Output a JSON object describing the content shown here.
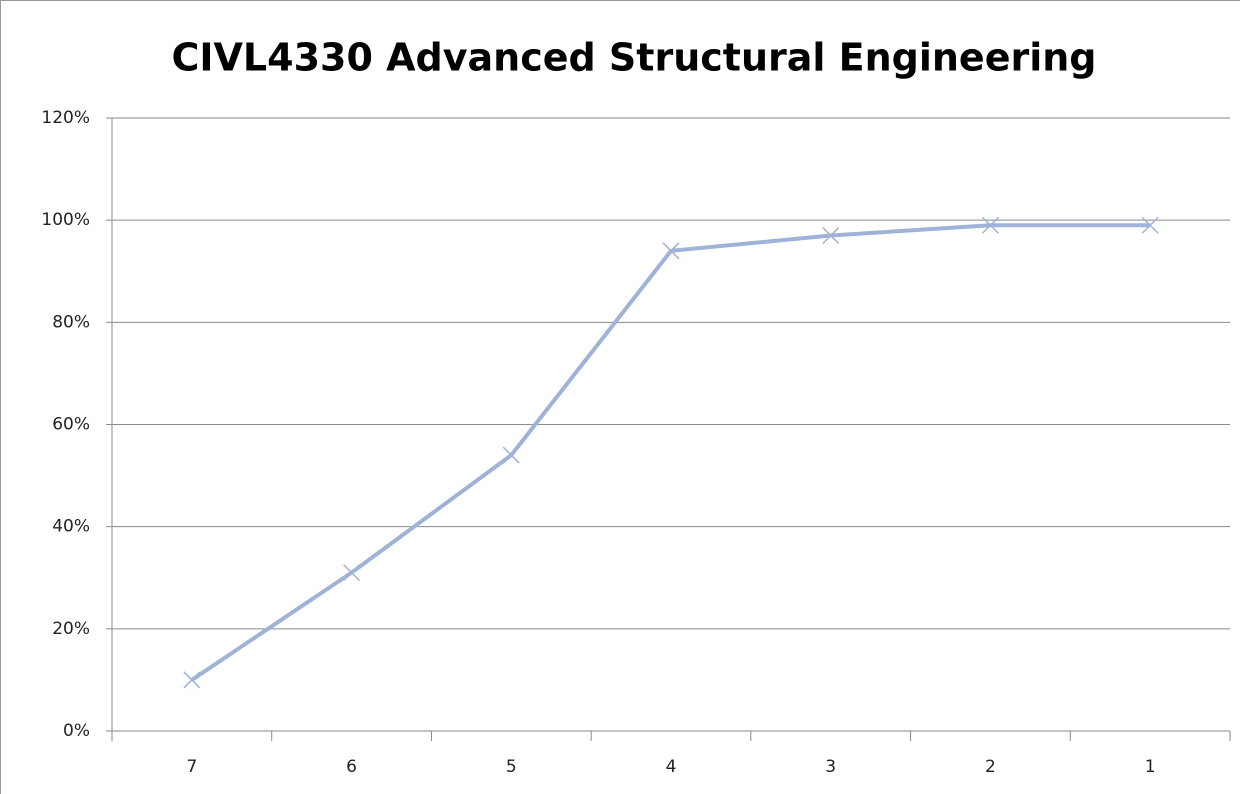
{
  "chart_data": {
    "type": "line",
    "title": "CIVL4330 Advanced Structural Engineering",
    "categories": [
      "7",
      "6",
      "5",
      "4",
      "3",
      "2",
      "1"
    ],
    "values": [
      10,
      31,
      54,
      94,
      97,
      99,
      99
    ],
    "color": "#9fb2d8",
    "ylim": [
      0,
      120
    ],
    "yticks": [
      {
        "value": 0,
        "label": "0%"
      },
      {
        "value": 20,
        "label": "20%"
      },
      {
        "value": 40,
        "label": "40%"
      },
      {
        "value": 60,
        "label": "60%"
      },
      {
        "value": 80,
        "label": "80%"
      },
      {
        "value": 100,
        "label": "100%"
      },
      {
        "value": 120,
        "label": "120%"
      }
    ],
    "grid": true
  }
}
